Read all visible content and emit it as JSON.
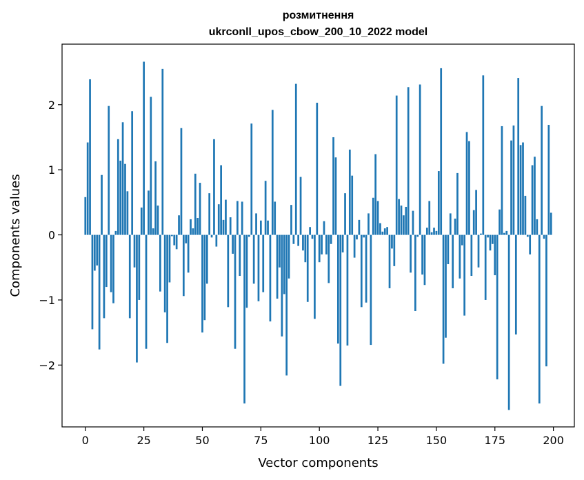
{
  "chart_data": {
    "type": "bar",
    "title": "розмитнення",
    "subtitle": "ukrconll_upos_cbow_200_10_2022 model",
    "xlabel": "Vector components",
    "ylabel": "Components values",
    "xlim": [
      -9.95,
      208.95
    ],
    "ylim": [
      -2.95,
      2.93
    ],
    "xticks": [
      0,
      25,
      50,
      75,
      100,
      125,
      150,
      175,
      200
    ],
    "xtick_labels": [
      "0",
      "25",
      "50",
      "75",
      "100",
      "125",
      "150",
      "175",
      "200"
    ],
    "yticks": [
      -2,
      -1,
      0,
      1,
      2
    ],
    "ytick_labels": [
      "−2",
      "−1",
      "0",
      "1",
      "2"
    ],
    "grid": false,
    "color": "#1f77b4",
    "x": [
      0,
      1,
      2,
      3,
      4,
      5,
      6,
      7,
      8,
      9,
      10,
      11,
      12,
      13,
      14,
      15,
      16,
      17,
      18,
      19,
      20,
      21,
      22,
      23,
      24,
      25,
      26,
      27,
      28,
      29,
      30,
      31,
      32,
      33,
      34,
      35,
      36,
      37,
      38,
      39,
      40,
      41,
      42,
      43,
      44,
      45,
      46,
      47,
      48,
      49,
      50,
      51,
      52,
      53,
      54,
      55,
      56,
      57,
      58,
      59,
      60,
      61,
      62,
      63,
      64,
      65,
      66,
      67,
      68,
      69,
      70,
      71,
      72,
      73,
      74,
      75,
      76,
      77,
      78,
      79,
      80,
      81,
      82,
      83,
      84,
      85,
      86,
      87,
      88,
      89,
      90,
      91,
      92,
      93,
      94,
      95,
      96,
      97,
      98,
      99,
      100,
      101,
      102,
      103,
      104,
      105,
      106,
      107,
      108,
      109,
      110,
      111,
      112,
      113,
      114,
      115,
      116,
      117,
      118,
      119,
      120,
      121,
      122,
      123,
      124,
      125,
      126,
      127,
      128,
      129,
      130,
      131,
      132,
      133,
      134,
      135,
      136,
      137,
      138,
      139,
      140,
      141,
      142,
      143,
      144,
      145,
      146,
      147,
      148,
      149,
      150,
      151,
      152,
      153,
      154,
      155,
      156,
      157,
      158,
      159,
      160,
      161,
      162,
      163,
      164,
      165,
      166,
      167,
      168,
      169,
      170,
      171,
      172,
      173,
      174,
      175,
      176,
      177,
      178,
      179,
      180,
      181,
      182,
      183,
      184,
      185,
      186,
      187,
      188,
      189,
      190,
      191,
      192,
      193,
      194,
      195,
      196,
      197,
      198,
      199
    ],
    "values": [
      0.58,
      1.42,
      2.39,
      -1.45,
      -0.55,
      -0.47,
      -1.76,
      0.92,
      -1.28,
      -0.8,
      1.98,
      -0.88,
      -1.05,
      0.06,
      1.47,
      1.14,
      1.73,
      1.09,
      0.67,
      -1.28,
      1.9,
      -0.5,
      -1.96,
      -1.0,
      0.42,
      2.66,
      -1.75,
      0.68,
      2.12,
      0.1,
      1.13,
      0.45,
      -0.87,
      2.55,
      -1.19,
      -1.66,
      -0.73,
      -0.02,
      -0.16,
      -0.22,
      0.3,
      1.64,
      -0.94,
      -0.13,
      -0.58,
      0.24,
      0.1,
      0.94,
      0.26,
      0.8,
      -1.5,
      -1.31,
      -0.75,
      0.64,
      -0.04,
      1.47,
      -0.18,
      0.47,
      1.07,
      0.23,
      0.54,
      -1.11,
      0.27,
      -0.29,
      -1.75,
      0.52,
      -0.63,
      0.51,
      -2.59,
      -1.12,
      -0.03,
      1.71,
      -0.75,
      0.33,
      -1.02,
      0.22,
      -0.88,
      0.83,
      0.22,
      -1.33,
      1.92,
      0.51,
      -0.98,
      -0.5,
      -1.56,
      -0.91,
      -2.16,
      -0.67,
      0.46,
      -0.14,
      2.32,
      -0.17,
      0.89,
      -0.24,
      -0.42,
      -1.03,
      0.12,
      -0.06,
      -1.29,
      2.03,
      -0.42,
      -0.3,
      0.21,
      -0.3,
      -0.74,
      -0.14,
      1.5,
      1.19,
      -1.67,
      -2.32,
      -0.27,
      0.64,
      -1.7,
      1.31,
      0.91,
      -0.35,
      -0.07,
      0.23,
      -1.11,
      -0.04,
      -1.04,
      0.33,
      -1.69,
      0.57,
      1.24,
      0.52,
      0.18,
      0.05,
      0.1,
      0.12,
      -0.82,
      -0.21,
      -0.48,
      2.14,
      0.55,
      0.45,
      0.3,
      0.43,
      2.27,
      -0.58,
      0.37,
      -1.17,
      -0.03,
      2.31,
      -0.61,
      -0.77,
      0.11,
      0.52,
      0.04,
      0.11,
      0.06,
      0.98,
      2.56,
      -1.98,
      -1.58,
      -0.45,
      0.33,
      -0.82,
      0.25,
      0.95,
      -0.67,
      -0.16,
      -1.24,
      1.58,
      1.44,
      -0.63,
      0.38,
      0.69,
      -0.5,
      0.02,
      2.45,
      -1.0,
      -0.04,
      -0.24,
      -0.14,
      -0.62,
      -2.22,
      0.39,
      1.67,
      0.03,
      0.06,
      -2.69,
      1.45,
      1.68,
      -1.53,
      2.41,
      1.38,
      1.42,
      0.6,
      -0.03,
      -0.3,
      1.07,
      1.2,
      0.24,
      -2.59,
      1.98,
      -0.06,
      -2.02,
      1.69,
      0.34
    ]
  }
}
